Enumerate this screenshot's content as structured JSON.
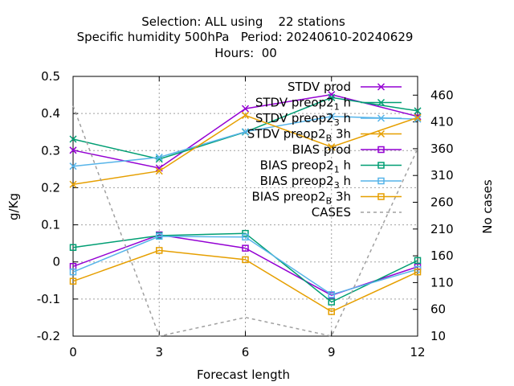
{
  "chart_data": {
    "type": "line",
    "title_lines": [
      "Selection: ALL using    22 stations",
      "Specific humidity 500hPa   Period: 20240610-20240629",
      "Hours:  00"
    ],
    "xlabel": "Forecast length",
    "ylabel": "g/Kg",
    "y2label": "No cases",
    "x": [
      0,
      3,
      6,
      9,
      12
    ],
    "xlim": [
      0,
      12
    ],
    "ylim": [
      -0.2,
      0.5
    ],
    "y2lim": [
      10,
      495
    ],
    "xticks": [
      "0",
      "3",
      "6",
      "9",
      "12"
    ],
    "yticks": [
      "0.5",
      "0.4",
      "0.3",
      "0.2",
      "0.1",
      "0",
      "-0.1",
      "-0.2"
    ],
    "y2ticks": [
      "460",
      "410",
      "360",
      "310",
      "260",
      "210",
      "160",
      "110",
      "60",
      "10"
    ],
    "grid": true,
    "legend_position": "top-right",
    "series": [
      {
        "name": "STDV prod",
        "legend_main": "STDV prod",
        "legend_sub": "",
        "legend_tail": "",
        "axis": "y",
        "marker": "x",
        "dashed": false,
        "color": "#9400d3",
        "values": [
          0.301,
          0.253,
          0.413,
          0.451,
          0.392
        ]
      },
      {
        "name": "STDV preop2_1h",
        "legend_main": "STDV preop2",
        "legend_sub": "1",
        "legend_tail": "h",
        "axis": "y",
        "marker": "x",
        "dashed": false,
        "color": "#009e73",
        "values": [
          0.331,
          0.277,
          0.35,
          0.443,
          0.407
        ]
      },
      {
        "name": "STDV preop2_3h",
        "legend_main": "STDV preop2",
        "legend_sub": "3",
        "legend_tail": "h",
        "axis": "y",
        "marker": "x",
        "dashed": false,
        "color": "#56b4e9",
        "values": [
          0.258,
          0.282,
          0.351,
          0.392,
          0.385
        ]
      },
      {
        "name": "STDV preop2_B3h",
        "legend_main": "STDV preop2",
        "legend_sub": "B",
        "legend_tail": "3h",
        "axis": "y",
        "marker": "x",
        "dashed": false,
        "color": "#e69f00",
        "values": [
          0.209,
          0.245,
          0.395,
          0.31,
          0.389
        ]
      },
      {
        "name": "BIAS prod",
        "legend_main": "BIAS prod",
        "legend_sub": "",
        "legend_tail": "",
        "axis": "y",
        "marker": "square",
        "dashed": false,
        "color": "#9400d3",
        "values": [
          -0.012,
          0.073,
          0.037,
          -0.09,
          -0.013
        ]
      },
      {
        "name": "BIAS preop2_1h",
        "legend_main": "BIAS preop2",
        "legend_sub": "1",
        "legend_tail": "h",
        "axis": "y",
        "marker": "square",
        "dashed": false,
        "color": "#009e73",
        "values": [
          0.039,
          0.071,
          0.077,
          -0.108,
          0.004
        ]
      },
      {
        "name": "BIAS preop2_3h",
        "legend_main": "BIAS preop2",
        "legend_sub": "3",
        "legend_tail": "h",
        "axis": "y",
        "marker": "square",
        "dashed": false,
        "color": "#56b4e9",
        "values": [
          -0.027,
          0.069,
          0.067,
          -0.088,
          -0.02
        ]
      },
      {
        "name": "BIAS preop2_B3h",
        "legend_main": "BIAS preop2",
        "legend_sub": "B",
        "legend_tail": "3h",
        "axis": "y",
        "marker": "square",
        "dashed": false,
        "color": "#e69f00",
        "values": [
          -0.052,
          0.031,
          0.006,
          -0.134,
          -0.027
        ]
      },
      {
        "name": "CASES",
        "legend_main": "CASES",
        "legend_sub": "",
        "legend_tail": "",
        "axis": "y2",
        "marker": "none",
        "dashed": true,
        "color": "#a0a0a0",
        "values": [
          440,
          10,
          45,
          10,
          360
        ]
      }
    ]
  }
}
